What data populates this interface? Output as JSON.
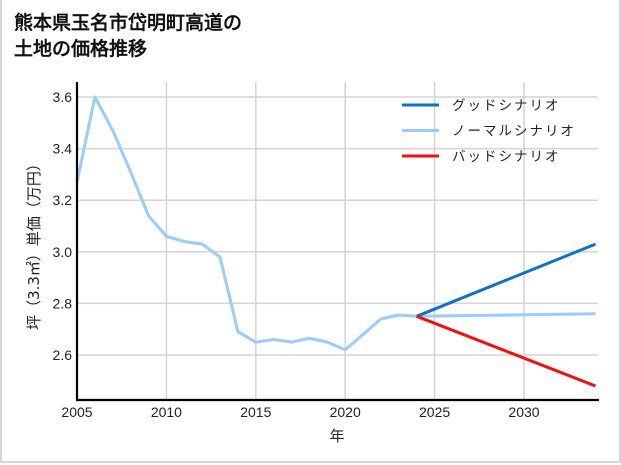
{
  "title": {
    "line1": "熊本県玉名市岱明町高道の",
    "line2": "土地の価格推移"
  },
  "chart_data": {
    "type": "line",
    "title": "熊本県玉名市岱明町高道の土地の価格推移",
    "xlabel": "年",
    "ylabel": "坪（3.3㎡）単価（万円）",
    "xlim": [
      2005,
      2034
    ],
    "ylim": [
      2.49,
      3.66
    ],
    "x_ticks": [
      2005,
      2010,
      2015,
      2020,
      2025,
      2030
    ],
    "y_ticks": [
      2.6,
      2.8,
      3.0,
      3.2,
      3.4,
      3.6
    ],
    "y_tick_labels": [
      "2.6",
      "2.8",
      "3.0",
      "3.2",
      "3.4",
      "3.6"
    ],
    "grid": true,
    "legend_position": "upper right",
    "series": [
      {
        "name": "グッドシナリオ",
        "color": "#1071c4",
        "x": [
          2024,
          2034
        ],
        "values": [
          2.75,
          3.03
        ]
      },
      {
        "name": "ノーマルシナリオ",
        "color": "#99ccff",
        "x": [
          2005,
          2006,
          2007,
          2008,
          2009,
          2010,
          2011,
          2012,
          2013,
          2014,
          2015,
          2016,
          2017,
          2018,
          2019,
          2020,
          2021,
          2022,
          2023,
          2024,
          2034
        ],
        "values": [
          3.27,
          3.6,
          3.47,
          3.31,
          3.14,
          3.06,
          3.04,
          3.03,
          2.98,
          2.69,
          2.65,
          2.66,
          2.65,
          2.665,
          2.65,
          2.62,
          2.68,
          2.74,
          2.755,
          2.75,
          2.76
        ]
      },
      {
        "name": "バッドシナリオ",
        "color": "#ee1111",
        "x": [
          2024,
          2034
        ],
        "values": [
          2.75,
          2.48
        ]
      }
    ]
  },
  "legend": [
    {
      "label": "グッドシナリオ",
      "color": "#1071c4"
    },
    {
      "label": "ノーマルシナリオ",
      "color": "#99ccff"
    },
    {
      "label": "バッドシナリオ",
      "color": "#ee1111"
    }
  ]
}
